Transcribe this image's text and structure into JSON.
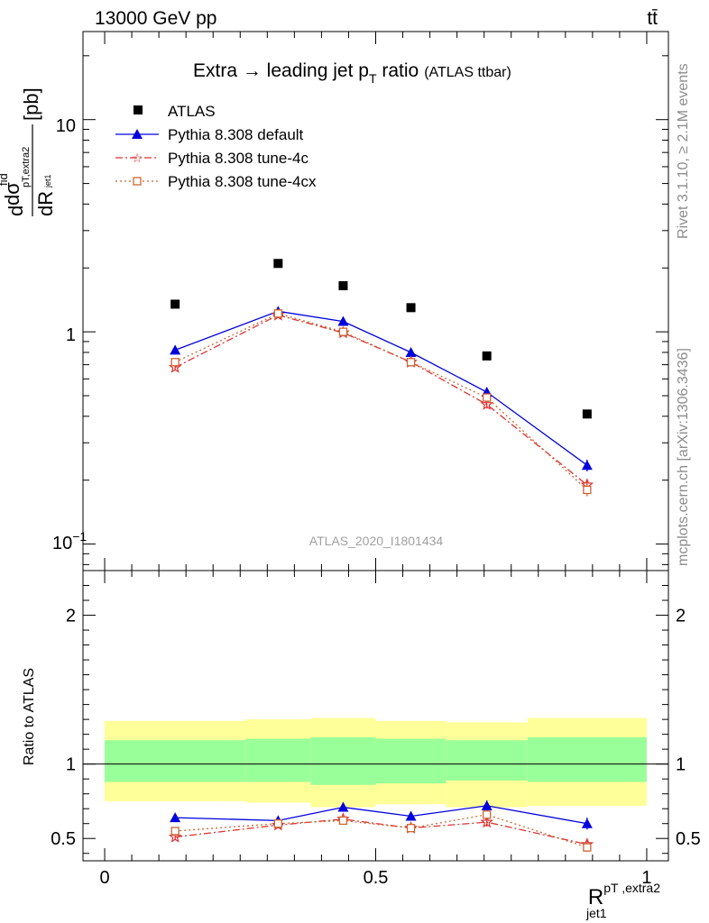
{
  "header": {
    "energy_label": "13000 GeV pp",
    "process_label": "tt̄"
  },
  "side_labels": {
    "rivet": "Rivet 3.1.10, ≥ 2.1M events",
    "mcplots": "mcplots.cern.ch [arXiv:1306.3436]"
  },
  "watermark": "ATLAS_2020_I1801434",
  "chart_data": [
    {
      "type": "line",
      "title_main": "Extra → leading jet p",
      "title_sub": "T",
      "title_rest": " ratio",
      "title_note": "(ATLAS ttbar)",
      "ylabel": {
        "d1": "d",
        "dsigma": "dσ",
        "fid": "fid",
        "sub": "pT,extra2",
        "sub2": "jet1",
        "dR": "dR",
        "unit": "[pb]"
      },
      "yscale": "log",
      "ylim": [
        0.075,
        26
      ],
      "xlim": [
        -0.04,
        1.04
      ],
      "y_tick_labels": {
        "ten": "10",
        "one": "1",
        "tenth_base": "10",
        "tenth_exp": "−1"
      },
      "x": [
        0.13,
        0.32,
        0.44,
        0.565,
        0.705,
        0.89
      ],
      "x_err": [
        0.13,
        0.06,
        0.06,
        0.065,
        0.075,
        0.11
      ],
      "legend_position": "top-left",
      "series": [
        {
          "name": "ATLAS",
          "key": "atlas",
          "color": "#000000",
          "marker": "square",
          "line": "none",
          "values": [
            1.35,
            2.1,
            1.65,
            1.3,
            0.77,
            0.41
          ],
          "errors": [
            0,
            0,
            0,
            0,
            0,
            0
          ]
        },
        {
          "name": "Pythia 8.308 default",
          "key": "default",
          "color": "#0000dd",
          "marker": "triangle",
          "line": "solid",
          "values": [
            0.82,
            1.25,
            1.12,
            0.8,
            0.52,
            0.235
          ],
          "errors": [
            0.02,
            0.03,
            0.03,
            0.03,
            0.025,
            0.015
          ]
        },
        {
          "name": "Pythia 8.308 tune-4c",
          "key": "tune4c",
          "color": "#dd3333",
          "marker": "star",
          "line": "dashdot",
          "values": [
            0.68,
            1.2,
            0.99,
            0.72,
            0.455,
            0.19
          ],
          "errors": [
            0.02,
            0.03,
            0.03,
            0.02,
            0.02,
            0.012
          ]
        },
        {
          "name": "Pythia 8.308 tune-4cx",
          "key": "tune4cx",
          "color": "#cc6633",
          "marker": "open-square",
          "line": "dotted",
          "values": [
            0.72,
            1.22,
            1.0,
            0.72,
            0.49,
            0.18
          ],
          "errors": [
            0.02,
            0.03,
            0.03,
            0.02,
            0.02,
            0.012
          ]
        }
      ]
    },
    {
      "type": "line",
      "ylabel": "Ratio to ATLAS",
      "xlabel_base": "R",
      "xlabel_sup": "pT ,extra2",
      "xlabel_sub": "jet1",
      "yscale": "linear",
      "ylim": [
        0.35,
        2.3
      ],
      "xlim": [
        -0.04,
        1.04
      ],
      "y_ticks": [
        "0.5",
        "1",
        "2"
      ],
      "y_tick_values": [
        0.5,
        1,
        2
      ],
      "x_ticks": [
        "0",
        "0.5",
        "1"
      ],
      "x_tick_values": [
        0,
        0.5,
        1
      ],
      "bands": {
        "bin_edges": [
          0,
          0.26,
          0.38,
          0.5,
          0.63,
          0.78,
          1.0
        ],
        "yellow_low": [
          0.75,
          0.74,
          0.71,
          0.73,
          0.71,
          0.72
        ],
        "yellow_high": [
          1.29,
          1.3,
          1.31,
          1.29,
          1.28,
          1.31
        ],
        "green_low": [
          0.88,
          0.88,
          0.86,
          0.87,
          0.89,
          0.88
        ],
        "green_high": [
          1.16,
          1.17,
          1.18,
          1.17,
          1.16,
          1.18
        ],
        "yellow_color": "#ffff99",
        "green_color": "#99ff99"
      },
      "series": [
        {
          "key": "default",
          "color": "#0000dd",
          "marker": "triangle",
          "line": "solid",
          "values": [
            0.64,
            0.62,
            0.71,
            0.65,
            0.72,
            0.6
          ],
          "errors": [
            0.02,
            0.02,
            0.03,
            0.03,
            0.035,
            0.04
          ]
        },
        {
          "key": "tune4c",
          "color": "#dd3333",
          "marker": "star",
          "line": "dashdot",
          "values": [
            0.51,
            0.59,
            0.63,
            0.57,
            0.61,
            0.46
          ],
          "errors": [
            0.02,
            0.02,
            0.02,
            0.02,
            0.03,
            0.03
          ]
        },
        {
          "key": "tune4cx",
          "color": "#cc6633",
          "marker": "open-square",
          "line": "dotted",
          "values": [
            0.55,
            0.6,
            0.62,
            0.57,
            0.66,
            0.44
          ],
          "errors": [
            0.02,
            0.02,
            0.02,
            0.02,
            0.03,
            0.03
          ]
        }
      ]
    }
  ]
}
